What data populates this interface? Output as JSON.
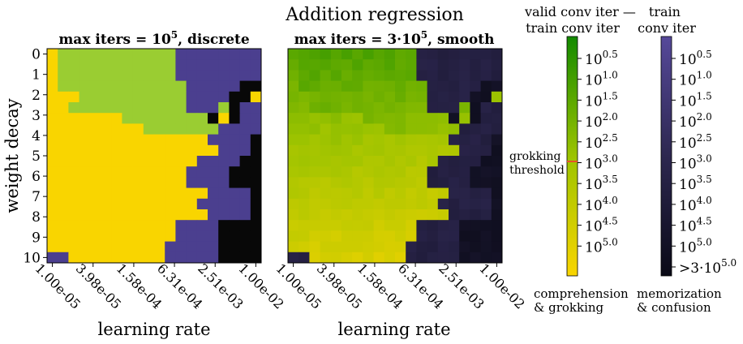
{
  "figure": {
    "suptitle": "Addition regression",
    "grokking_label": [
      "grokking",
      "threshold"
    ],
    "colorbar_left_title": [
      "valid conv iter —",
      "train conv iter"
    ],
    "colorbar_right_title": [
      "train",
      "conv iter"
    ],
    "colorbar_left_caption": [
      "comprehension",
      "& grokking"
    ],
    "colorbar_right_caption": [
      "memorization",
      "& confusion"
    ],
    "colorbar_left_ticks": [
      {
        "base": "10",
        "exp": "0.5"
      },
      {
        "base": "10",
        "exp": "1.0"
      },
      {
        "base": "10",
        "exp": "1.5"
      },
      {
        "base": "10",
        "exp": "2.0"
      },
      {
        "base": "10",
        "exp": "2.5"
      },
      {
        "base": "10",
        "exp": "3.0"
      },
      {
        "base": "10",
        "exp": "3.5"
      },
      {
        "base": "10",
        "exp": "4.0"
      },
      {
        "base": "10",
        "exp": "4.5"
      },
      {
        "base": "10",
        "exp": "5.0"
      }
    ],
    "colorbar_right_ticks": [
      {
        "base": "10",
        "exp": "0.5"
      },
      {
        "base": "10",
        "exp": "1.0"
      },
      {
        "base": "10",
        "exp": "1.5"
      },
      {
        "base": "10",
        "exp": "2.0"
      },
      {
        "base": "10",
        "exp": "2.5"
      },
      {
        "base": "10",
        "exp": "3.0"
      },
      {
        "base": "10",
        "exp": "3.5"
      },
      {
        "base": "10",
        "exp": "4.0"
      },
      {
        "base": "10",
        "exp": "4.5"
      },
      {
        "base": "10",
        "exp": "5.0"
      },
      {
        "base": ">3·10",
        "exp": "5.0"
      }
    ],
    "colors": {
      "yellow": "#f9d500",
      "lightgreen": "#9acd32",
      "purple": "#4b3f8f",
      "black": "#080808",
      "cmap_left": [
        "#f9d500",
        "#9cc300",
        "#138a00"
      ],
      "cmap_right": [
        "#0a0a16",
        "#2d2750",
        "#56499a"
      ],
      "threshold_line": "#e8502a"
    }
  },
  "chart_data": [
    {
      "type": "heatmap",
      "title": {
        "prefix": "max iters = ",
        "base": "10",
        "exp": "5",
        "suffix": ", discrete"
      },
      "xlabel": "learning rate",
      "ylabel": "weight decay",
      "x_ticks": [
        "1.00e-05",
        "3.98e-05",
        "1.58e-04",
        "6.31e-04",
        "2.51e-03",
        "1.00e-02"
      ],
      "y_ticks": [
        "0",
        "1",
        "2",
        "3",
        "4",
        "5",
        "6",
        "7",
        "8",
        "9",
        "10"
      ],
      "legend_map": {
        "Y": "comprehension",
        "G": "grokking",
        "P": "memorization",
        "B": "confusion"
      },
      "rows": [
        "YGGGGGGGGGGGPPPPPPPP",
        "YGGGGGGGGGGGPPPPPPPP",
        "YGGGGGGGGGGGPPPPPPPP",
        "YGGGGGGGGGGGGPPPPPBB",
        "YYYGGGGGGGGGGPPPPBBY",
        "YYGGGGGGGGGGGPPPGBPP",
        "YYYYYYYGGGGGGGGBYBPP",
        "YYYYYYYYYGGGGGGGPPPP",
        "YYYYYYYYYYYYYYYPPPPB",
        "YYYYYYYYYYYYYYYYPPPB",
        "YYYYYYYYYYYYYYPPPPBB",
        "YYYYYYYYYYYYYPPPPBBB",
        "YYYYYYYYYYYYYPPPPBBB",
        "YYYYYYYYYYYYYYYPPPPB",
        "YYYYYYYYYYYYYYPPPPPB",
        "YYYYYYYYYYYYYYYPPPPB",
        "YYYYYYYYYYYYPPPPBBBB",
        "YYYYYYYYYYYYPPPPBBBB",
        "YYYYYYYYYYYPPPPPBBBB",
        "PPYYYYYYYYYPPPPPBBBB"
      ]
    },
    {
      "type": "heatmap",
      "title": {
        "prefix": "max iters = 3·",
        "base": "10",
        "exp": "5",
        "suffix": ", smooth"
      },
      "xlabel": "learning rate",
      "x_ticks": [
        "1.00e-05",
        "3.98e-05",
        "1.58e-04",
        "6.31e-04",
        "2.51e-03",
        "1.00e-02"
      ],
      "legend_map": {
        "Y": "comprehension",
        "G": "grokking",
        "P": "memorization",
        "B": "confusion"
      },
      "rows": [
        "YGGGGGGGGGGGPPPPPPPP",
        "YGGGGGGGGGGGPPPPPPPP",
        "YGGGGGGGGGGGPPPPPPPP",
        "YGGGGGGGGGGGGPPPPPBB",
        "YYYGGGGGGGGGGPPPPBBY",
        "YYGGGGGGGGGGGPPPGBPP",
        "YYYYYYYGGGGGGGGBYBPP",
        "YYYYYYYYYGGGGGGGPPPP",
        "YYYYYYYYYYYYYYYPPPPB",
        "YYYYYYYYYYYYYYYYPPPB",
        "YYYYYYYYYYYYYYPPPPBB",
        "YYYYYYYYYYYYYPPPPBBB",
        "YYYYYYYYYYYYYPPPPBBB",
        "YYYYYYYYYYYYYYYPPPPB",
        "YYYYYYYYYYYYYYPPPPPB",
        "YYYYYYYYYYYYYYYPPPPB",
        "YYYYYYYYYYYYPPPPBBBB",
        "YYYYYYYYYYYYPPPPBBBB",
        "YYYYYYYYYYYPPPPPBBBB",
        "PPYYYYYYYYYPPPPPBBBB"
      ]
    }
  ]
}
